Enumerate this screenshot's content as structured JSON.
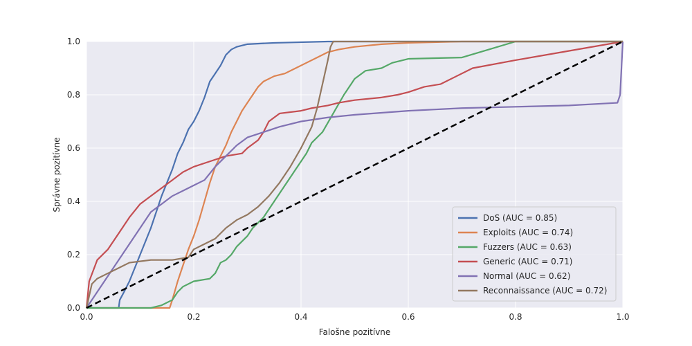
{
  "chart_data": {
    "type": "line",
    "title": "",
    "xlabel": "Falošne pozitívne",
    "ylabel": "Správne pozitívne",
    "xlim": [
      0.0,
      1.0
    ],
    "ylim": [
      0.0,
      1.0
    ],
    "x_ticks": [
      "0.0",
      "0.2",
      "0.4",
      "0.6",
      "0.8",
      "1.0"
    ],
    "y_ticks": [
      "0.0",
      "0.2",
      "0.4",
      "0.6",
      "0.8",
      "1.0"
    ],
    "grid": true,
    "background_color": "#EAEAF2",
    "legend_position": "lower-right",
    "series": [
      {
        "name": "DoS (AUC = 0.85)",
        "color": "#4C72B0",
        "points": [
          [
            0.0,
            0.0
          ],
          [
            0.06,
            0.0
          ],
          [
            0.062,
            0.03
          ],
          [
            0.07,
            0.06
          ],
          [
            0.08,
            0.1
          ],
          [
            0.1,
            0.2
          ],
          [
            0.12,
            0.3
          ],
          [
            0.14,
            0.42
          ],
          [
            0.15,
            0.47
          ],
          [
            0.16,
            0.52
          ],
          [
            0.17,
            0.58
          ],
          [
            0.18,
            0.62
          ],
          [
            0.19,
            0.67
          ],
          [
            0.2,
            0.7
          ],
          [
            0.21,
            0.74
          ],
          [
            0.22,
            0.79
          ],
          [
            0.23,
            0.85
          ],
          [
            0.24,
            0.88
          ],
          [
            0.25,
            0.91
          ],
          [
            0.26,
            0.95
          ],
          [
            0.27,
            0.97
          ],
          [
            0.28,
            0.98
          ],
          [
            0.3,
            0.99
          ],
          [
            0.35,
            0.995
          ],
          [
            0.45,
            1.0
          ],
          [
            1.0,
            1.0
          ]
        ]
      },
      {
        "name": "Exploits (AUC = 0.74)",
        "color": "#DD8452",
        "points": [
          [
            0.0,
            0.0
          ],
          [
            0.155,
            0.0
          ],
          [
            0.16,
            0.03
          ],
          [
            0.17,
            0.1
          ],
          [
            0.18,
            0.16
          ],
          [
            0.19,
            0.22
          ],
          [
            0.2,
            0.27
          ],
          [
            0.21,
            0.33
          ],
          [
            0.22,
            0.4
          ],
          [
            0.23,
            0.47
          ],
          [
            0.24,
            0.53
          ],
          [
            0.25,
            0.57
          ],
          [
            0.26,
            0.61
          ],
          [
            0.27,
            0.66
          ],
          [
            0.28,
            0.7
          ],
          [
            0.29,
            0.74
          ],
          [
            0.3,
            0.77
          ],
          [
            0.31,
            0.8
          ],
          [
            0.32,
            0.83
          ],
          [
            0.33,
            0.85
          ],
          [
            0.35,
            0.87
          ],
          [
            0.37,
            0.88
          ],
          [
            0.39,
            0.9
          ],
          [
            0.41,
            0.92
          ],
          [
            0.43,
            0.94
          ],
          [
            0.45,
            0.96
          ],
          [
            0.47,
            0.97
          ],
          [
            0.5,
            0.98
          ],
          [
            0.55,
            0.99
          ],
          [
            0.6,
            0.995
          ],
          [
            0.7,
            1.0
          ],
          [
            1.0,
            1.0
          ]
        ]
      },
      {
        "name": "Fuzzers (AUC = 0.63)",
        "color": "#55A868",
        "points": [
          [
            0.0,
            0.0
          ],
          [
            0.12,
            0.0
          ],
          [
            0.14,
            0.01
          ],
          [
            0.16,
            0.03
          ],
          [
            0.17,
            0.06
          ],
          [
            0.18,
            0.08
          ],
          [
            0.2,
            0.1
          ],
          [
            0.23,
            0.11
          ],
          [
            0.24,
            0.13
          ],
          [
            0.25,
            0.17
          ],
          [
            0.26,
            0.18
          ],
          [
            0.27,
            0.2
          ],
          [
            0.28,
            0.23
          ],
          [
            0.3,
            0.27
          ],
          [
            0.31,
            0.3
          ],
          [
            0.33,
            0.34
          ],
          [
            0.35,
            0.4
          ],
          [
            0.37,
            0.46
          ],
          [
            0.39,
            0.52
          ],
          [
            0.41,
            0.58
          ],
          [
            0.42,
            0.62
          ],
          [
            0.44,
            0.66
          ],
          [
            0.46,
            0.73
          ],
          [
            0.48,
            0.8
          ],
          [
            0.5,
            0.86
          ],
          [
            0.52,
            0.89
          ],
          [
            0.55,
            0.9
          ],
          [
            0.57,
            0.92
          ],
          [
            0.6,
            0.935
          ],
          [
            0.7,
            0.94
          ],
          [
            0.75,
            0.97
          ],
          [
            0.8,
            1.0
          ],
          [
            1.0,
            1.0
          ]
        ]
      },
      {
        "name": "Generic (AUC = 0.71)",
        "color": "#C44E52",
        "points": [
          [
            0.0,
            0.0
          ],
          [
            0.005,
            0.1
          ],
          [
            0.02,
            0.18
          ],
          [
            0.04,
            0.22
          ],
          [
            0.06,
            0.28
          ],
          [
            0.08,
            0.34
          ],
          [
            0.1,
            0.39
          ],
          [
            0.12,
            0.42
          ],
          [
            0.14,
            0.45
          ],
          [
            0.16,
            0.48
          ],
          [
            0.18,
            0.51
          ],
          [
            0.2,
            0.53
          ],
          [
            0.23,
            0.55
          ],
          [
            0.26,
            0.57
          ],
          [
            0.29,
            0.58
          ],
          [
            0.3,
            0.6
          ],
          [
            0.32,
            0.63
          ],
          [
            0.33,
            0.66
          ],
          [
            0.34,
            0.7
          ],
          [
            0.36,
            0.73
          ],
          [
            0.4,
            0.74
          ],
          [
            0.42,
            0.75
          ],
          [
            0.45,
            0.76
          ],
          [
            0.47,
            0.77
          ],
          [
            0.5,
            0.78
          ],
          [
            0.55,
            0.79
          ],
          [
            0.58,
            0.8
          ],
          [
            0.6,
            0.81
          ],
          [
            0.63,
            0.83
          ],
          [
            0.66,
            0.84
          ],
          [
            0.69,
            0.87
          ],
          [
            0.72,
            0.9
          ],
          [
            0.8,
            0.93
          ],
          [
            0.9,
            0.965
          ],
          [
            1.0,
            1.0
          ]
        ]
      },
      {
        "name": "Normal (AUC = 0.62)",
        "color": "#8172B3",
        "points": [
          [
            0.0,
            0.0
          ],
          [
            0.05,
            0.15
          ],
          [
            0.1,
            0.3
          ],
          [
            0.12,
            0.36
          ],
          [
            0.14,
            0.39
          ],
          [
            0.16,
            0.42
          ],
          [
            0.18,
            0.44
          ],
          [
            0.2,
            0.46
          ],
          [
            0.22,
            0.48
          ],
          [
            0.24,
            0.53
          ],
          [
            0.26,
            0.57
          ],
          [
            0.28,
            0.61
          ],
          [
            0.3,
            0.64
          ],
          [
            0.33,
            0.66
          ],
          [
            0.36,
            0.68
          ],
          [
            0.4,
            0.7
          ],
          [
            0.45,
            0.715
          ],
          [
            0.5,
            0.725
          ],
          [
            0.6,
            0.74
          ],
          [
            0.7,
            0.75
          ],
          [
            0.8,
            0.755
          ],
          [
            0.9,
            0.76
          ],
          [
            0.99,
            0.77
          ],
          [
            0.995,
            0.8
          ],
          [
            1.0,
            1.0
          ]
        ]
      },
      {
        "name": "Reconnaissance (AUC = 0.72)",
        "color": "#937860",
        "points": [
          [
            0.0,
            0.0
          ],
          [
            0.01,
            0.09
          ],
          [
            0.02,
            0.11
          ],
          [
            0.04,
            0.13
          ],
          [
            0.06,
            0.15
          ],
          [
            0.08,
            0.17
          ],
          [
            0.1,
            0.175
          ],
          [
            0.12,
            0.18
          ],
          [
            0.16,
            0.18
          ],
          [
            0.19,
            0.19
          ],
          [
            0.2,
            0.22
          ],
          [
            0.22,
            0.24
          ],
          [
            0.24,
            0.26
          ],
          [
            0.26,
            0.3
          ],
          [
            0.28,
            0.33
          ],
          [
            0.3,
            0.35
          ],
          [
            0.32,
            0.38
          ],
          [
            0.34,
            0.42
          ],
          [
            0.36,
            0.47
          ],
          [
            0.38,
            0.53
          ],
          [
            0.4,
            0.6
          ],
          [
            0.42,
            0.68
          ],
          [
            0.43,
            0.75
          ],
          [
            0.44,
            0.84
          ],
          [
            0.45,
            0.93
          ],
          [
            0.455,
            0.98
          ],
          [
            0.46,
            1.0
          ],
          [
            1.0,
            1.0
          ]
        ]
      },
      {
        "name": "",
        "color": "#000000",
        "dashed": true,
        "points": [
          [
            0.0,
            0.0
          ],
          [
            1.0,
            1.0
          ]
        ]
      }
    ]
  }
}
